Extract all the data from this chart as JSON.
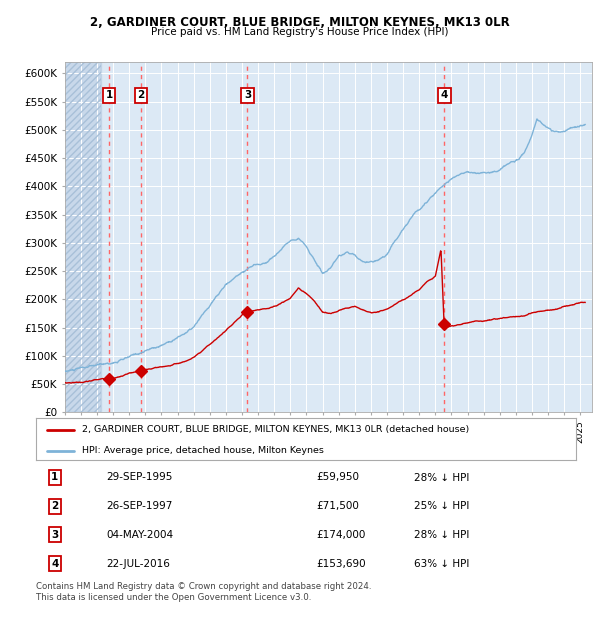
{
  "title1": "2, GARDINER COURT, BLUE BRIDGE, MILTON KEYNES, MK13 0LR",
  "title2": "Price paid vs. HM Land Registry's House Price Index (HPI)",
  "ylim": [
    0,
    620000
  ],
  "yticks": [
    0,
    50000,
    100000,
    150000,
    200000,
    250000,
    300000,
    350000,
    400000,
    450000,
    500000,
    550000,
    600000
  ],
  "ytick_labels": [
    "£0",
    "£50K",
    "£100K",
    "£150K",
    "£200K",
    "£250K",
    "£300K",
    "£350K",
    "£400K",
    "£450K",
    "£500K",
    "£550K",
    "£600K"
  ],
  "xlim_start": 1993.0,
  "xlim_end": 2025.7,
  "plot_bg_color": "#DCE9F5",
  "hatch_end": 1995.25,
  "grid_color": "#FFFFFF",
  "sale_dates": [
    1995.747,
    1997.731,
    2004.338,
    2016.553
  ],
  "sale_prices": [
    59950,
    71500,
    174000,
    153690
  ],
  "sale_labels": [
    "1",
    "2",
    "3",
    "4"
  ],
  "red_line_color": "#CC0000",
  "blue_line_color": "#7EB3D8",
  "dashed_line_color": "#FF6666",
  "legend_entry1": "2, GARDINER COURT, BLUE BRIDGE, MILTON KEYNES, MK13 0LR (detached house)",
  "legend_entry2": "HPI: Average price, detached house, Milton Keynes",
  "table_entries": [
    {
      "num": "1",
      "date": "29-SEP-1995",
      "price": "£59,950",
      "change": "28% ↓ HPI"
    },
    {
      "num": "2",
      "date": "26-SEP-1997",
      "price": "£71,500",
      "change": "25% ↓ HPI"
    },
    {
      "num": "3",
      "date": "04-MAY-2004",
      "price": "£174,000",
      "change": "28% ↓ HPI"
    },
    {
      "num": "4",
      "date": "22-JUL-2016",
      "price": "£153,690",
      "change": "63% ↓ HPI"
    }
  ],
  "footer": "Contains HM Land Registry data © Crown copyright and database right 2024.\nThis data is licensed under the Open Government Licence v3.0."
}
